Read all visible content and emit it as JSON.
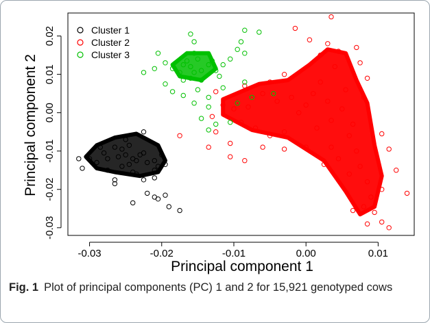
{
  "figure": {
    "caption_label": "Fig. 1",
    "caption_text": "Plot of principal components (PC) 1 and 2 for 15,921 genotyped cows"
  },
  "chart_data": {
    "type": "scatter",
    "xlabel": "Principal component 1",
    "ylabel": "Principal component 2",
    "xlim": [
      -0.033,
      0.015
    ],
    "ylim": [
      -0.032,
      0.026
    ],
    "xticks": [
      -0.03,
      -0.02,
      -0.01,
      0.0,
      0.01
    ],
    "xtick_labels": [
      "-0.03",
      "-0.02",
      "-0.01",
      "0.00",
      "0.01"
    ],
    "yticks": [
      -0.03,
      -0.02,
      -0.01,
      0.0,
      0.01,
      0.02
    ],
    "ytick_labels": [
      "-0.03",
      "-0.02",
      "-0.01",
      "0.00",
      "0.01",
      "0.02"
    ],
    "grid": false,
    "marker": "open-circle",
    "legend_position": "top-left",
    "series": [
      {
        "name": "Cluster 1",
        "color": "#000000",
        "points": [
          [
            -0.024,
            -0.012
          ],
          [
            -0.0235,
            -0.0125
          ],
          [
            -0.025,
            -0.011
          ],
          [
            -0.022,
            -0.013
          ],
          [
            -0.026,
            -0.0115
          ],
          [
            -0.0245,
            -0.0135
          ],
          [
            -0.023,
            -0.011
          ],
          [
            -0.0275,
            -0.012
          ],
          [
            -0.021,
            -0.0125
          ],
          [
            -0.0255,
            -0.014
          ],
          [
            -0.0225,
            -0.0105
          ],
          [
            -0.028,
            -0.0105
          ],
          [
            -0.0205,
            -0.014
          ],
          [
            -0.0265,
            -0.009
          ],
          [
            -0.024,
            -0.0155
          ],
          [
            -0.029,
            -0.013
          ],
          [
            -0.02,
            -0.011
          ],
          [
            -0.0245,
            -0.0085
          ],
          [
            -0.0235,
            -0.016
          ],
          [
            -0.0285,
            -0.009
          ],
          [
            -0.0195,
            -0.0135
          ],
          [
            -0.0275,
            -0.015
          ],
          [
            -0.025,
            -0.007
          ],
          [
            -0.0225,
            -0.005
          ],
          [
            -0.03,
            -0.012
          ],
          [
            -0.0315,
            -0.012
          ],
          [
            -0.031,
            -0.0145
          ],
          [
            -0.021,
            -0.017
          ],
          [
            -0.0225,
            -0.0175
          ],
          [
            -0.0265,
            -0.0175
          ],
          [
            -0.022,
            -0.021
          ],
          [
            -0.021,
            -0.022
          ],
          [
            -0.0195,
            -0.0215
          ],
          [
            -0.0205,
            -0.0225
          ],
          [
            -0.019,
            -0.0245
          ],
          [
            -0.0175,
            -0.0255
          ],
          [
            -0.024,
            -0.0235
          ],
          [
            -0.0265,
            -0.0185
          ],
          [
            -0.021,
            -0.015
          ],
          [
            -0.0255,
            -0.0095
          ]
        ]
      },
      {
        "name": "Cluster 2",
        "color": "#ff0000",
        "points": [
          [
            0.003,
            0.003
          ],
          [
            0.004,
            0.012
          ],
          [
            0.002,
            0.008
          ],
          [
            0.005,
            0.001
          ],
          [
            0.001,
            0.005
          ],
          [
            0.0035,
            -0.002
          ],
          [
            0.006,
            -0.006
          ],
          [
            0.007,
            -0.01
          ],
          [
            0.0075,
            -0.014
          ],
          [
            0.0085,
            -0.018
          ],
          [
            0.009,
            -0.022
          ],
          [
            0.0095,
            -0.026
          ],
          [
            0.008,
            -0.0245
          ],
          [
            0.0105,
            -0.02
          ],
          [
            0.006,
            -0.016
          ],
          [
            0.0045,
            -0.012
          ],
          [
            0.0,
            0.002
          ],
          [
            -0.002,
            0.004
          ],
          [
            -0.004,
            0.003
          ],
          [
            -0.006,
            0.005
          ],
          [
            -0.008,
            0.0015
          ],
          [
            -0.01,
            0.001
          ],
          [
            -0.0115,
            0.002
          ],
          [
            -0.009,
            -0.0025
          ],
          [
            -0.007,
            -0.004
          ],
          [
            -0.005,
            -0.006
          ],
          [
            -0.003,
            -0.005
          ],
          [
            -0.001,
            0.0
          ],
          [
            0.0015,
            -0.004
          ],
          [
            0.002,
            0.015
          ],
          [
            0.003,
            0.018
          ],
          [
            0.0045,
            0.016
          ],
          [
            -0.005,
            0.008
          ],
          [
            -0.003,
            0.01
          ],
          [
            -0.0085,
            0.007
          ],
          [
            -0.0125,
            -0.005
          ],
          [
            -0.013,
            -0.001
          ],
          [
            -0.0105,
            -0.008
          ],
          [
            -0.006,
            -0.009
          ],
          [
            0.0,
            -0.009
          ],
          [
            0.0035,
            -0.009
          ],
          [
            0.0065,
            -0.003
          ],
          [
            0.008,
            0.004
          ],
          [
            0.0085,
            0.009
          ],
          [
            -0.0125,
            0.0055
          ],
          [
            -0.0175,
            -0.006
          ],
          [
            -0.0135,
            -0.009
          ],
          [
            -0.0105,
            -0.0115
          ],
          [
            -0.0085,
            -0.0125
          ],
          [
            -0.0015,
            0.022
          ],
          [
            0.0035,
            0.025
          ],
          [
            0.0005,
            0.019
          ],
          [
            0.014,
            -0.021
          ],
          [
            0.0115,
            -0.03
          ],
          [
            0.0105,
            -0.0285
          ],
          [
            0.0085,
            -0.029
          ],
          [
            0.0065,
            -0.0255
          ],
          [
            0.0125,
            -0.015
          ],
          [
            0.0115,
            -0.0095
          ],
          [
            0.0105,
            -0.0055
          ],
          [
            0.0025,
            -0.0135
          ],
          [
            -0.003,
            -0.0095
          ],
          [
            0.0055,
            0.006
          ],
          [
            0.0075,
            0.013
          ],
          [
            0.007,
            0.017
          ]
        ]
      },
      {
        "name": "Cluster 3",
        "color": "#00c000",
        "points": [
          [
            -0.016,
            0.012
          ],
          [
            -0.015,
            0.014
          ],
          [
            -0.0155,
            0.0105
          ],
          [
            -0.017,
            0.0125
          ],
          [
            -0.0145,
            0.011
          ],
          [
            -0.0165,
            0.0135
          ],
          [
            -0.0135,
            0.0125
          ],
          [
            -0.0175,
            0.0105
          ],
          [
            -0.016,
            0.009
          ],
          [
            -0.0155,
            0.0155
          ],
          [
            -0.0185,
            0.0115
          ],
          [
            -0.013,
            0.0135
          ],
          [
            -0.0195,
            0.013
          ],
          [
            -0.0145,
            0.0085
          ],
          [
            -0.017,
            0.0085
          ],
          [
            -0.0125,
            0.011
          ],
          [
            -0.0115,
            0.0125
          ],
          [
            -0.0105,
            0.014
          ],
          [
            -0.0095,
            0.0165
          ],
          [
            -0.0085,
            0.0155
          ],
          [
            -0.009,
            0.0185
          ],
          [
            -0.0085,
            0.0215
          ],
          [
            -0.0065,
            0.021
          ],
          [
            -0.016,
            0.0205
          ],
          [
            -0.0155,
            0.0185
          ],
          [
            -0.0205,
            0.0155
          ],
          [
            -0.021,
            0.0115
          ],
          [
            -0.0225,
            0.0105
          ],
          [
            -0.0195,
            0.0075
          ],
          [
            -0.0185,
            0.0055
          ],
          [
            -0.017,
            0.0045
          ],
          [
            -0.015,
            0.006
          ],
          [
            -0.0135,
            0.004
          ],
          [
            -0.0135,
            0.0015
          ],
          [
            -0.0145,
            -0.0015
          ],
          [
            -0.0125,
            -0.003
          ],
          [
            -0.0105,
            -0.0025
          ],
          [
            -0.0115,
            0.0065
          ],
          [
            -0.0095,
            0.0025
          ],
          [
            -0.0075,
            0.004
          ],
          [
            -0.0085,
            0.008
          ],
          [
            -0.012,
            0.0095
          ],
          [
            -0.0045,
            0.005
          ],
          [
            -0.0135,
            -0.0045
          ],
          [
            -0.0155,
            0.0025
          ]
        ]
      }
    ]
  }
}
